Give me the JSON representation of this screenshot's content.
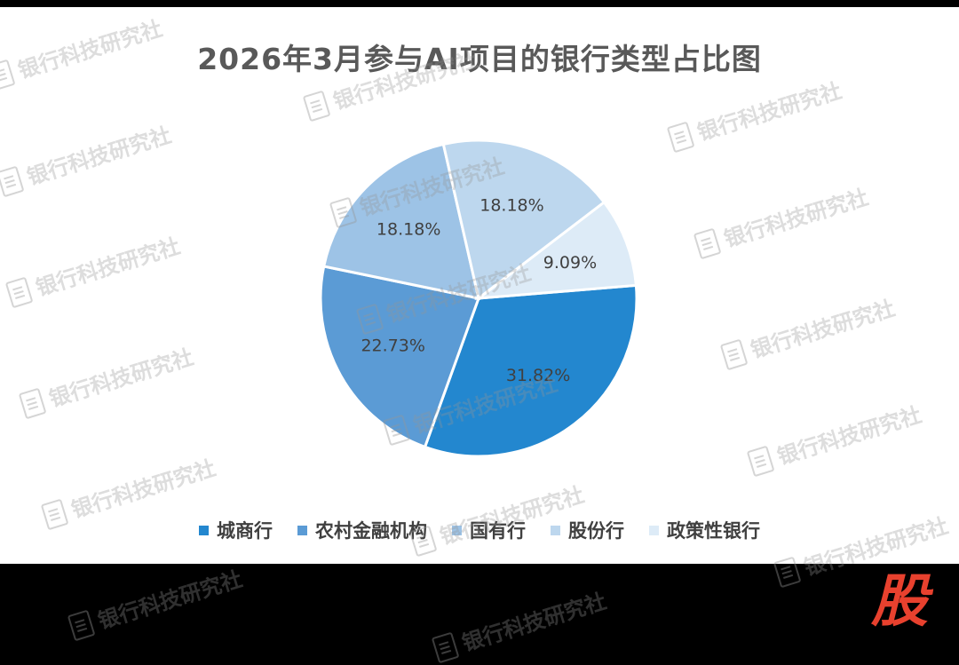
{
  "chart_data": {
    "type": "pie",
    "title": "2026年3月参与AI项目的银行类型占比图",
    "categories": [
      "城商行",
      "农村金融机构",
      "国有行",
      "股份行",
      "政策性银行"
    ],
    "values": [
      31.82,
      22.73,
      18.18,
      18.18,
      9.09
    ],
    "data_labels": [
      "31.82%",
      "22.73%",
      "18.18%",
      "18.18%",
      "9.09%"
    ],
    "colors": [
      "#2387cf",
      "#5b9bd5",
      "#9dc3e6",
      "#bdd7ee",
      "#ddebf7"
    ],
    "legend_position": "bottom"
  },
  "watermark": {
    "text": "银行科技研究社",
    "icon": "bank-document-icon"
  },
  "logo": {
    "text": "股",
    "color": "#e8412e"
  }
}
